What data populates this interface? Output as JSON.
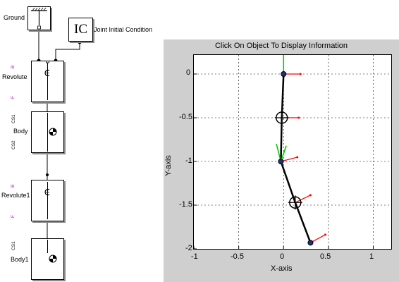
{
  "diagram": {
    "blocks": [
      {
        "id": "ground",
        "label": "Ground"
      },
      {
        "id": "ic",
        "label": "Joint Initial Condition",
        "text": "IC"
      },
      {
        "id": "revolute",
        "label": "Revolute",
        "ports": [
          "B",
          "F"
        ]
      },
      {
        "id": "body",
        "label": "Body",
        "ports": [
          "CS1",
          "CS2"
        ]
      },
      {
        "id": "revolute1",
        "label": "Revolute1",
        "ports": [
          "B",
          "F"
        ]
      },
      {
        "id": "body1",
        "label": "Body1",
        "ports": [
          "CS1"
        ]
      }
    ]
  },
  "plot": {
    "title": "Click On Object To Display Information",
    "xlabel": "X-axis",
    "ylabel": "Y-axis",
    "xticks": [
      "-1",
      "-0.5",
      "0",
      "0.5",
      "1"
    ],
    "yticks": [
      "0",
      "-0.5",
      "-1",
      "-1.5",
      "-2"
    ]
  },
  "chart_data": {
    "type": "line",
    "xlim": [
      -1,
      1.2
    ],
    "ylim": [
      -2,
      0.2
    ],
    "grid": true,
    "series": [
      {
        "values": [
          [
            0,
            0
          ],
          [
            -0.02,
            -0.5
          ],
          [
            -0.03,
            -1.0
          ],
          [
            0.13,
            -1.47
          ],
          [
            0.3,
            -1.93
          ]
        ]
      }
    ]
  },
  "colors": {
    "link": "#000000",
    "x_axis_marker": "#ff0000",
    "y_axis_marker": "#00cc00",
    "panel": "#cfcfcf"
  }
}
